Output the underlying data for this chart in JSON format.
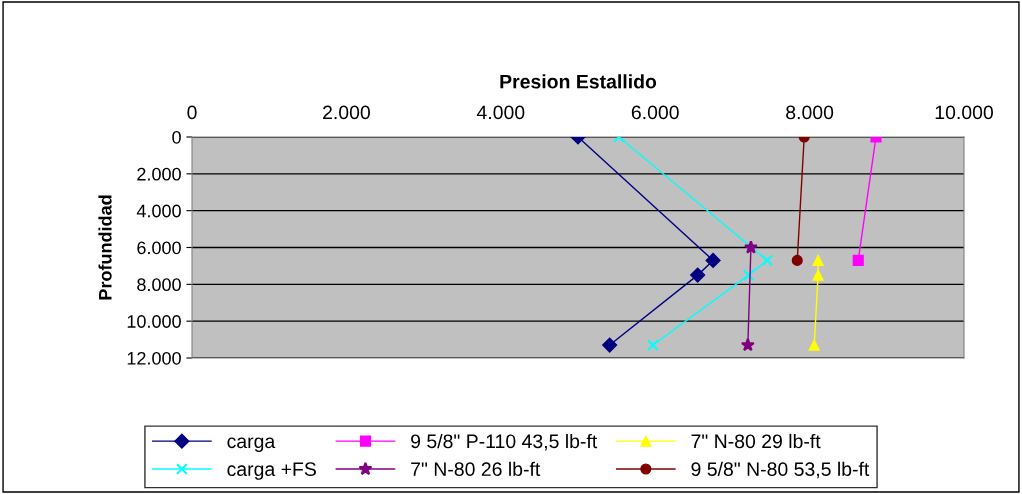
{
  "chart_data": {
    "type": "line",
    "title": "Presion Estallido",
    "ylabel": "Profundidad",
    "xlim": [
      0,
      10000
    ],
    "xticks": [
      {
        "value": 0,
        "label": "0"
      },
      {
        "value": 2000,
        "label": "2.000"
      },
      {
        "value": 4000,
        "label": "4.000"
      },
      {
        "value": 6000,
        "label": "6.000"
      },
      {
        "value": 8000,
        "label": "8.000"
      },
      {
        "value": 10000,
        "label": "10.000"
      }
    ],
    "ylim": [
      12000,
      0
    ],
    "yticks": [
      {
        "value": 0,
        "label": "0"
      },
      {
        "value": 2000,
        "label": "2.000"
      },
      {
        "value": 4000,
        "label": "4.000"
      },
      {
        "value": 6000,
        "label": "6.000"
      },
      {
        "value": 8000,
        "label": "8.000"
      },
      {
        "value": 10000,
        "label": "10.000"
      },
      {
        "value": 12000,
        "label": "12.000"
      }
    ],
    "grid": "y",
    "legend": "bottom",
    "line_style": "solid",
    "series": [
      {
        "name": "carga",
        "color": "#000080",
        "marker": "diamond",
        "x": [
          5000,
          6750,
          6550,
          5410
        ],
        "values": [
          0,
          6700,
          7500,
          11300
        ]
      },
      {
        "name": "carga +FS",
        "color": "#00ffff",
        "marker": "cross",
        "x": [
          5530,
          7450,
          7210,
          5970
        ],
        "values": [
          0,
          6700,
          7500,
          11300
        ]
      },
      {
        "name": "9 5/8\" P-110 43,5 lb-ft",
        "color": "#ff00ff",
        "marker": "square",
        "x": [
          8860,
          8630
        ],
        "values": [
          0,
          6700
        ]
      },
      {
        "name": "7\" N-80 26 lb-ft",
        "color": "#800080",
        "marker": "star",
        "x": [
          7240,
          7200
        ],
        "values": [
          6000,
          11300
        ]
      },
      {
        "name": "7\" N-80 29 lb-ft",
        "color": "#ffff00",
        "marker": "triangle",
        "x": [
          8110,
          8110,
          8060
        ],
        "values": [
          6700,
          7500,
          11300
        ]
      },
      {
        "name": "9 5/8\" N-80 53,5 lb-ft",
        "color": "#800000",
        "marker": "circle",
        "x": [
          7930,
          7840
        ],
        "values": [
          0,
          6700
        ]
      }
    ]
  }
}
